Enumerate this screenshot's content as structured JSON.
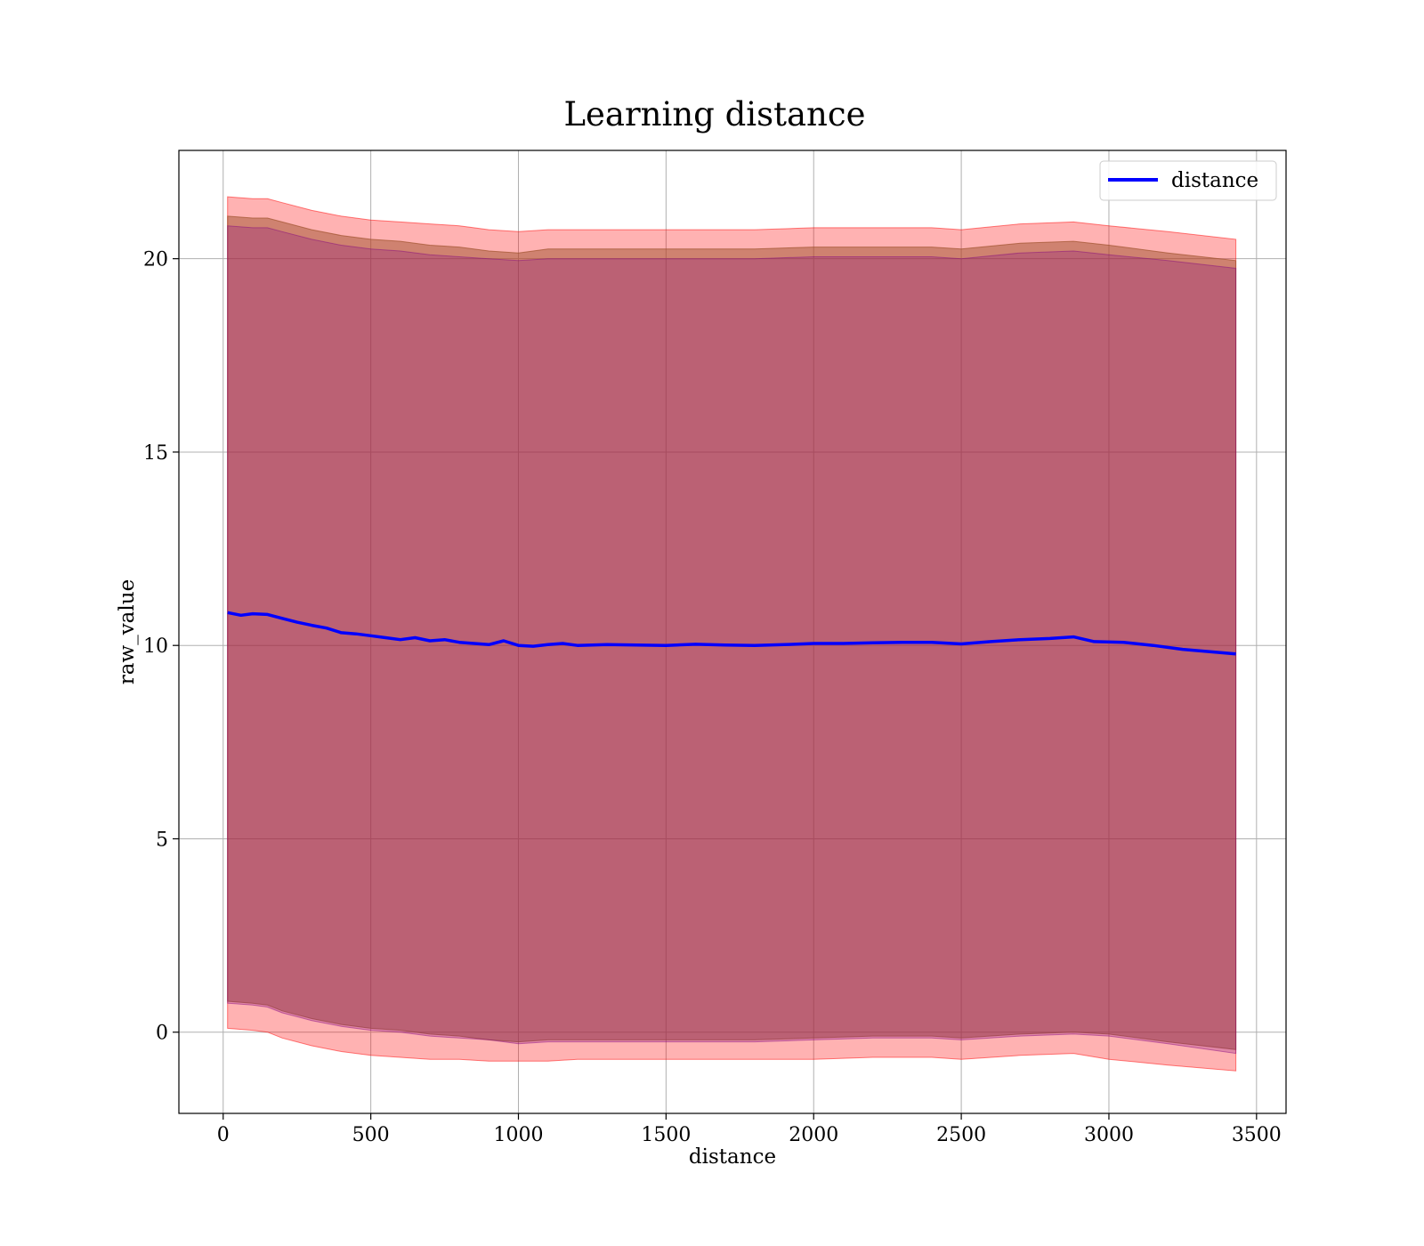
{
  "chart_data": {
    "type": "line",
    "title": "Learning distance",
    "xlabel": "distance",
    "ylabel": "raw_value",
    "xlim": [
      -150,
      3600
    ],
    "ylim": [
      -2.1,
      22.8
    ],
    "xticks": [
      0,
      500,
      1000,
      1500,
      2000,
      2500,
      3000,
      3500
    ],
    "yticks": [
      0,
      5,
      10,
      15,
      20
    ],
    "grid": true,
    "legend_position": "top-right",
    "series": [
      {
        "name": "distance",
        "color": "#0000ff",
        "x": [
          15,
          60,
          100,
          150,
          200,
          250,
          300,
          350,
          400,
          450,
          500,
          550,
          600,
          650,
          700,
          750,
          800,
          850,
          900,
          950,
          1000,
          1050,
          1100,
          1150,
          1200,
          1300,
          1400,
          1500,
          1600,
          1700,
          1800,
          1900,
          2000,
          2100,
          2200,
          2300,
          2400,
          2500,
          2600,
          2700,
          2800,
          2880,
          2950,
          3050,
          3150,
          3250,
          3430
        ],
        "y": [
          10.85,
          10.78,
          10.82,
          10.8,
          10.7,
          10.6,
          10.52,
          10.45,
          10.33,
          10.3,
          10.25,
          10.2,
          10.15,
          10.2,
          10.12,
          10.15,
          10.08,
          10.05,
          10.02,
          10.12,
          10.0,
          9.98,
          10.02,
          10.05,
          10.0,
          10.02,
          10.01,
          10.0,
          10.03,
          10.01,
          10.0,
          10.02,
          10.05,
          10.05,
          10.07,
          10.08,
          10.08,
          10.04,
          10.1,
          10.15,
          10.18,
          10.22,
          10.1,
          10.08,
          10.0,
          9.9,
          9.78
        ]
      }
    ],
    "bands": [
      {
        "color": "#ff0000",
        "opacity": 0.3,
        "x": [
          15,
          100,
          150,
          200,
          300,
          400,
          500,
          600,
          700,
          800,
          900,
          1000,
          1100,
          1200,
          1400,
          1600,
          1800,
          2000,
          2200,
          2400,
          2500,
          2700,
          2880,
          3000,
          3200,
          3430
        ],
        "upper": [
          21.6,
          21.55,
          21.55,
          21.45,
          21.25,
          21.1,
          21.0,
          20.95,
          20.9,
          20.85,
          20.75,
          20.7,
          20.75,
          20.75,
          20.75,
          20.75,
          20.75,
          20.8,
          20.8,
          20.8,
          20.75,
          20.9,
          20.95,
          20.85,
          20.7,
          20.5
        ],
        "lower": [
          0.1,
          0.05,
          0.0,
          -0.15,
          -0.35,
          -0.5,
          -0.6,
          -0.65,
          -0.7,
          -0.7,
          -0.75,
          -0.75,
          -0.75,
          -0.7,
          -0.7,
          -0.7,
          -0.7,
          -0.7,
          -0.65,
          -0.65,
          -0.7,
          -0.6,
          -0.55,
          -0.7,
          -0.85,
          -1.0
        ]
      },
      {
        "color": "#a0522d",
        "opacity": 0.5,
        "x": [
          15,
          100,
          150,
          200,
          300,
          400,
          500,
          600,
          700,
          800,
          900,
          1000,
          1100,
          1200,
          1400,
          1600,
          1800,
          2000,
          2200,
          2400,
          2500,
          2700,
          2880,
          3000,
          3200,
          3430
        ],
        "upper": [
          21.1,
          21.05,
          21.05,
          20.95,
          20.75,
          20.6,
          20.5,
          20.45,
          20.35,
          20.3,
          20.2,
          20.15,
          20.25,
          20.25,
          20.25,
          20.25,
          20.25,
          20.3,
          20.3,
          20.3,
          20.25,
          20.4,
          20.45,
          20.35,
          20.15,
          19.95
        ],
        "lower": [
          0.8,
          0.75,
          0.7,
          0.55,
          0.35,
          0.2,
          0.1,
          0.05,
          -0.05,
          -0.1,
          -0.2,
          -0.25,
          -0.2,
          -0.2,
          -0.2,
          -0.2,
          -0.2,
          -0.15,
          -0.1,
          -0.1,
          -0.15,
          -0.05,
          0.0,
          -0.05,
          -0.25,
          -0.45
        ]
      },
      {
        "color": "#800080",
        "opacity": 0.25,
        "x": [
          15,
          100,
          150,
          200,
          300,
          400,
          500,
          600,
          700,
          800,
          900,
          1000,
          1100,
          1200,
          1400,
          1600,
          1800,
          2000,
          2200,
          2400,
          2500,
          2700,
          2880,
          3000,
          3200,
          3430
        ],
        "upper": [
          20.85,
          20.8,
          20.8,
          20.7,
          20.5,
          20.35,
          20.25,
          20.2,
          20.1,
          20.05,
          20.0,
          19.95,
          20.0,
          20.0,
          20.0,
          20.0,
          20.0,
          20.05,
          20.05,
          20.05,
          20.0,
          20.15,
          20.2,
          20.1,
          19.95,
          19.75
        ],
        "lower": [
          0.75,
          0.7,
          0.65,
          0.5,
          0.3,
          0.15,
          0.05,
          0.0,
          -0.1,
          -0.15,
          -0.2,
          -0.3,
          -0.25,
          -0.25,
          -0.25,
          -0.25,
          -0.25,
          -0.2,
          -0.15,
          -0.15,
          -0.2,
          -0.1,
          -0.05,
          -0.1,
          -0.3,
          -0.55
        ]
      }
    ]
  }
}
